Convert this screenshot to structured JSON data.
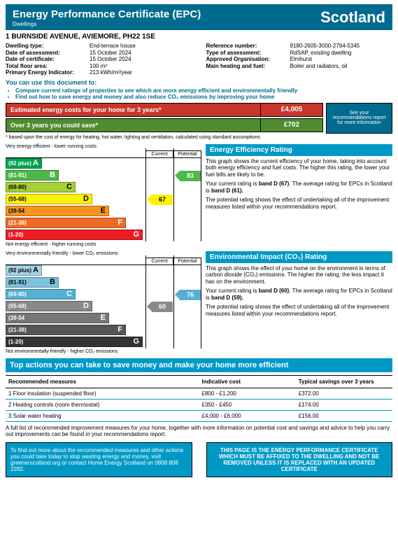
{
  "header": {
    "title": "Energy Performance Certificate (EPC)",
    "subtitle": "Dwellings",
    "region": "Scotland"
  },
  "address": "1 BURNSIDE AVENUE, AVIEMORE, PH22 1SE",
  "details": {
    "left": [
      {
        "label": "Dwelling type:",
        "value": "End-terrace house"
      },
      {
        "label": "Date of assessment:",
        "value": "15 October 2024"
      },
      {
        "label": "Date of certificate:",
        "value": "15 October 2024"
      },
      {
        "label": "Total floor area:",
        "value": "100 m²"
      },
      {
        "label": "Primary Energy Indicator:",
        "value": "213 kWh/m²/year"
      }
    ],
    "right": [
      {
        "label": "Reference number:",
        "value": "9180-2605-3000-2794-5345"
      },
      {
        "label": "Type of assessment:",
        "value": "RdSAP, existing dwelling"
      },
      {
        "label": "Approved Organisation:",
        "value": "Elmhurst"
      },
      {
        "label": "Main heating and fuel:",
        "value": "Boiler and radiators, oil"
      }
    ]
  },
  "usethis": "You can use this document to:",
  "bullets": [
    "Compare current ratings of properties to see which are more energy efficient and environmentally friendly",
    "Find out how to save energy and money and also reduce CO₂ emissions by improving your home"
  ],
  "costs": {
    "est_label": "Estimated energy costs for your home for 3 years*",
    "est_value": "£4,005",
    "est_bg": "#c8362b",
    "save_label": "Over 3 years you could save*",
    "save_value": "£702",
    "save_bg": "#4f8c2f",
    "seerec": "See your recommendations report for more information"
  },
  "footnote": "* based upon the cost of energy for heating, hot water, lighting and ventilation, calculated using standard assumptions",
  "bands": [
    {
      "letter": "A",
      "range": "(92 plus)"
    },
    {
      "letter": "B",
      "range": "(81-91)"
    },
    {
      "letter": "C",
      "range": "(69-80)"
    },
    {
      "letter": "D",
      "range": "(55-68)"
    },
    {
      "letter": "E",
      "range": "(39-54"
    },
    {
      "letter": "F",
      "range": "(21-38)"
    },
    {
      "letter": "G",
      "range": "(1-20)"
    }
  ],
  "band_widths": [
    52,
    76,
    100,
    124,
    148,
    172,
    196
  ],
  "eff": {
    "colors": [
      "#00a651",
      "#4cb848",
      "#a6ce39",
      "#fff200",
      "#f7941e",
      "#ed6b24",
      "#ed1c24"
    ],
    "textcolors": [
      "#fff",
      "#fff",
      "#000",
      "#000",
      "#000",
      "#fff",
      "#fff"
    ],
    "title": "Very energy efficient - lower running costs",
    "footer": "Not energy efficient - higher running costs",
    "current_value": "67",
    "current_band": 3,
    "current_color": "#fff200",
    "current_textcolor": "#000",
    "potential_value": "83",
    "potential_band": 1,
    "potential_color": "#4cb848",
    "potential_textcolor": "#fff",
    "section_title": "Energy Efficiency Rating",
    "p1": "This graph shows the current efficiency of your home, taking into account both energy efficiency and fuel costs. The higher this rating, the lower your fuel bills are likely to be.",
    "p2a": "Your current rating is ",
    "p2b": "band D (67)",
    "p2c": ". The average rating for EPCs in Scotland is ",
    "p2d": "band D (61).",
    "p3": "The potential rating shows the effect of undertaking all of the improvement measures listed within your recommendations report."
  },
  "env": {
    "colors": [
      "#a3d4e8",
      "#7cc3de",
      "#54b1d4",
      "#8a8a8a",
      "#777777",
      "#555555",
      "#333333"
    ],
    "textcolors": [
      "#000",
      "#000",
      "#fff",
      "#fff",
      "#fff",
      "#fff",
      "#fff"
    ],
    "title": "Very environmentally friendly - lower CO₂ emissions",
    "footer": "Not environmentally friendly - higher CO₂ emissions",
    "current_value": "60",
    "current_band": 3,
    "current_color": "#8a8a8a",
    "current_textcolor": "#fff",
    "potential_value": "76",
    "potential_band": 2,
    "potential_color": "#54b1d4",
    "potential_textcolor": "#fff",
    "section_title": "Environmental Impact (CO₂) Rating",
    "p1": "This graph shows the effect of your home on the environment in terms of carbon dioxide (CO₂) emissions. The higher the rating, the less impact it has on the environment.",
    "p2a": "Your current rating is ",
    "p2b": "band D (60)",
    "p2c": ". The average rating for EPCs in Scotland is ",
    "p2d": "band D (59).",
    "p3": "The potential rating shows the effect of undertaking all of the improvement measures listed within your recommendations report."
  },
  "col_labels": {
    "current": "Current",
    "potential": "Potential"
  },
  "topactions": {
    "title": "Top actions you can take to save money and make your home more efficient",
    "headers": [
      "Recommended measures",
      "Indicative cost",
      "Typical savings over 3 years"
    ],
    "rows": [
      [
        "1 Floor insulation (suspended floor)",
        "£800 - £1,200",
        "£372.00"
      ],
      [
        "2 Heating controls (room thermostat)",
        "£350 - £450",
        "£174.00"
      ],
      [
        "3 Solar water heating",
        "£4,000 - £6,000",
        "£156.00"
      ]
    ]
  },
  "fulllist": "A full list of recommended improvement measures for your home, together with more information on potential cost and savings and advice to help you carry out improvements can be found in your recommendations report.",
  "bottom": {
    "left": "To find out more about the recommended measures and other actions you could take today to stop wasting energy and money, visit greenerscotland.org or contact Home Energy Scotland on 0808 808 2282.",
    "right": "THIS PAGE IS THE ENERGY PERFORMANCE CERTIFICATE WHICH MUST BE AFFIXED TO THE DWELLING AND NOT BE REMOVED UNLESS IT IS REPLACED WITH AN UPDATED CERTIFICATE"
  }
}
